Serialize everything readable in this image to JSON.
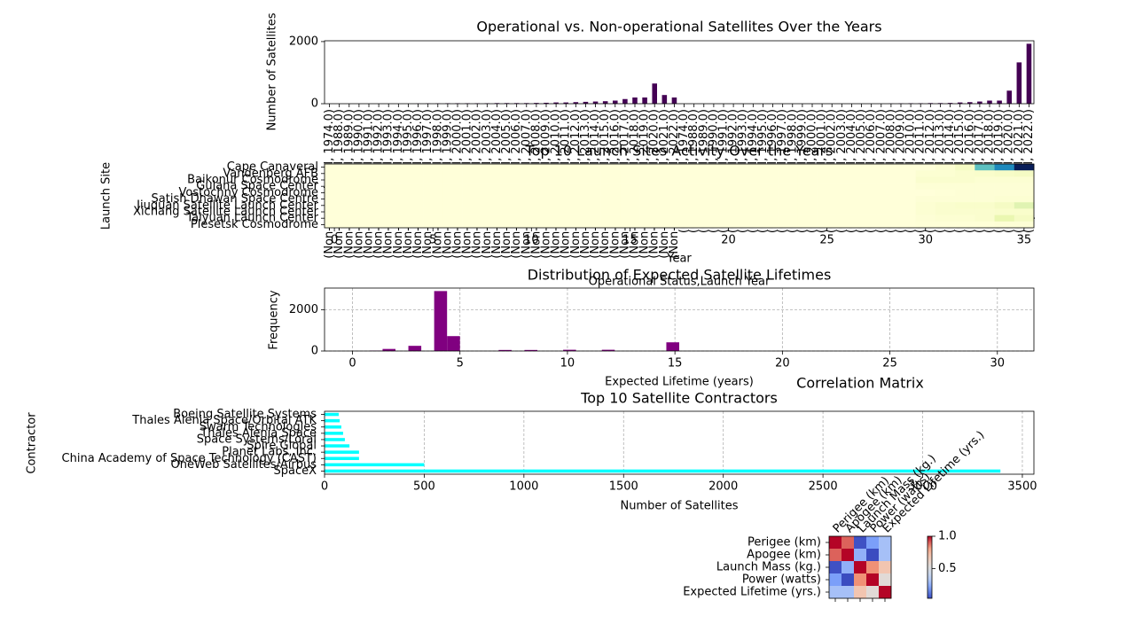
{
  "chart_data": [
    {
      "type": "bar",
      "title": "Operational vs. Non-operational Satellites Over the Years",
      "xlabel": "Operational Status,Launch Year",
      "ylabel": "Number of Satellites",
      "color": "#440154",
      "categories": [
        "(Non-operational, 1974.0)",
        "(Non-operational, 1988.0)",
        "(Non-operational, 1989.0)",
        "(Non-operational, 1990.0)",
        "(Non-operational, 1991.0)",
        "(Non-operational, 1992.0)",
        "(Non-operational, 1993.0)",
        "(Non-operational, 1994.0)",
        "(Non-operational, 1995.0)",
        "(Non-operational, 1996.0)",
        "(Non-operational, 1997.0)",
        "(Non-operational, 1998.0)",
        "(Non-operational, 1999.0)",
        "(Non-operational, 2000.0)",
        "(Non-operational, 2001.0)",
        "(Non-operational, 2002.0)",
        "(Non-operational, 2003.0)",
        "(Non-operational, 2004.0)",
        "(Non-operational, 2005.0)",
        "(Non-operational, 2006.0)",
        "(Non-operational, 2007.0)",
        "(Non-operational, 2008.0)",
        "(Non-operational, 2009.0)",
        "(Non-operational, 2010.0)",
        "(Non-operational, 2011.0)",
        "(Non-operational, 2012.0)",
        "(Non-operational, 2013.0)",
        "(Non-operational, 2014.0)",
        "(Non-operational, 2015.0)",
        "(Non-operational, 2016.0)",
        "(Non-operational, 2017.0)",
        "(Non-operational, 2018.0)",
        "(Non-operational, 2019.0)",
        "(Non-operational, 2020.0)",
        "(Non-operational, 2021.0)",
        "(Non-operational, 2022.0)",
        "(Operational, 1974.0)",
        "(Operational, 1988.0)",
        "(Operational, 1989.0)",
        "(Operational, 1990.0)",
        "(Operational, 1991.0)",
        "(Operational, 1992.0)",
        "(Operational, 1993.0)",
        "(Operational, 1994.0)",
        "(Operational, 1995.0)",
        "(Operational, 1996.0)",
        "(Operational, 1997.0)",
        "(Operational, 1998.0)",
        "(Operational, 1999.0)",
        "(Operational, 2000.0)",
        "(Operational, 2001.0)",
        "(Operational, 2002.0)",
        "(Operational, 2003.0)",
        "(Operational, 2004.0)",
        "(Operational, 2005.0)",
        "(Operational, 2006.0)",
        "(Operational, 2007.0)",
        "(Operational, 2008.0)",
        "(Operational, 2009.0)",
        "(Operational, 2010.0)",
        "(Operational, 2011.0)",
        "(Operational, 2012.0)",
        "(Operational, 2013.0)",
        "(Operational, 2014.0)",
        "(Operational, 2015.0)",
        "(Operational, 2016.0)",
        "(Operational, 2017.0)",
        "(Operational, 2018.0)",
        "(Operational, 2019.0)",
        "(Operational, 2020.0)",
        "(Operational, 2021.0)",
        "(Operational, 2022.0)"
      ],
      "values": [
        0,
        0,
        0,
        0,
        0,
        0,
        0,
        0,
        0,
        5,
        10,
        10,
        15,
        15,
        15,
        15,
        15,
        20,
        20,
        20,
        20,
        25,
        30,
        40,
        40,
        50,
        60,
        70,
        80,
        100,
        150,
        200,
        200,
        650,
        280,
        200,
        0,
        0,
        0,
        0,
        0,
        0,
        0,
        0,
        0,
        0,
        0,
        0,
        0,
        0,
        0,
        0,
        0,
        0,
        0,
        0,
        0,
        5,
        10,
        15,
        15,
        20,
        20,
        25,
        40,
        50,
        70,
        100,
        100,
        420,
        1330,
        1930
      ],
      "ylim": [
        0,
        2026
      ],
      "yticks": [
        0,
        2000
      ]
    },
    {
      "type": "heatmap",
      "title": "Top 10 Launch Sites Activity Over the Years",
      "xlabel": "Year",
      "ylabel": "Launch Site",
      "cmap": "YlGnBu",
      "rows": [
        "Cape Canaveral",
        "Vandenberg AFB",
        "Baikonur Cosmodrome",
        "Guiana Space Center",
        "Vostochny Cosmodrome",
        "Satish Dhawan Space Centre",
        "Jiuquan Satellite Launch Center",
        "Xichang Satellite Launch Center",
        "Taiyuan Launch Center",
        "Plesetsk Cosmodrome"
      ],
      "xticks": [
        0,
        5,
        10,
        15,
        20,
        25,
        30,
        35
      ],
      "values": [
        [
          0,
          0,
          0,
          0,
          0,
          0,
          0,
          0,
          0,
          0,
          0,
          0,
          0,
          0,
          0,
          0,
          0,
          0,
          0,
          0,
          0,
          0,
          0,
          0,
          0,
          0,
          0,
          0,
          0,
          0,
          0,
          20,
          60,
          400,
          580,
          900
        ],
        [
          0,
          0,
          0,
          0,
          0,
          0,
          0,
          0,
          0,
          0,
          0,
          0,
          0,
          0,
          0,
          0,
          0,
          0,
          0,
          0,
          0,
          0,
          0,
          0,
          0,
          0,
          0,
          0,
          0,
          0,
          20,
          20,
          30,
          40,
          50,
          60
        ],
        [
          0,
          0,
          0,
          0,
          0,
          0,
          0,
          0,
          0,
          0,
          0,
          0,
          0,
          0,
          0,
          0,
          0,
          0,
          0,
          0,
          0,
          0,
          0,
          0,
          0,
          0,
          0,
          0,
          0,
          0,
          30,
          30,
          30,
          20,
          20,
          20
        ],
        [
          0,
          0,
          0,
          0,
          0,
          0,
          0,
          0,
          0,
          0,
          0,
          0,
          0,
          0,
          0,
          0,
          0,
          0,
          0,
          0,
          0,
          0,
          0,
          0,
          0,
          0,
          0,
          0,
          0,
          0,
          10,
          10,
          10,
          10,
          10,
          10
        ],
        [
          0,
          0,
          0,
          0,
          0,
          0,
          0,
          0,
          0,
          0,
          0,
          0,
          0,
          0,
          0,
          0,
          0,
          0,
          0,
          0,
          0,
          0,
          0,
          0,
          0,
          0,
          0,
          0,
          0,
          0,
          0,
          5,
          10,
          10,
          10,
          10
        ],
        [
          0,
          0,
          0,
          0,
          0,
          0,
          0,
          0,
          0,
          0,
          0,
          0,
          0,
          0,
          0,
          0,
          0,
          0,
          0,
          0,
          0,
          0,
          0,
          0,
          0,
          0,
          0,
          0,
          0,
          0,
          10,
          10,
          10,
          10,
          20,
          20
        ],
        [
          0,
          0,
          0,
          0,
          0,
          0,
          0,
          0,
          0,
          0,
          0,
          0,
          0,
          0,
          0,
          0,
          0,
          0,
          0,
          0,
          0,
          0,
          0,
          0,
          0,
          0,
          0,
          0,
          0,
          0,
          20,
          30,
          40,
          40,
          60,
          150
        ],
        [
          0,
          0,
          0,
          0,
          0,
          0,
          0,
          0,
          0,
          0,
          0,
          0,
          0,
          0,
          0,
          0,
          0,
          0,
          0,
          0,
          0,
          0,
          0,
          0,
          0,
          0,
          0,
          0,
          0,
          0,
          20,
          30,
          30,
          30,
          40,
          40
        ],
        [
          0,
          0,
          0,
          0,
          0,
          0,
          0,
          0,
          0,
          0,
          0,
          0,
          0,
          0,
          0,
          0,
          0,
          0,
          0,
          0,
          0,
          0,
          0,
          0,
          0,
          0,
          0,
          0,
          0,
          0,
          10,
          20,
          20,
          30,
          120,
          60
        ],
        [
          0,
          0,
          0,
          0,
          0,
          0,
          0,
          0,
          0,
          0,
          0,
          0,
          0,
          0,
          0,
          0,
          0,
          0,
          0,
          0,
          0,
          0,
          0,
          0,
          0,
          0,
          0,
          0,
          0,
          0,
          5,
          5,
          5,
          5,
          10,
          10
        ]
      ]
    },
    {
      "type": "histogram",
      "title": "Distribution of Expected Satellite Lifetimes",
      "xlabel": "Expected Lifetime (years)",
      "ylabel": "Frequency",
      "color": "#800080",
      "grid": true,
      "bins": [
        0.2,
        0.8,
        1.4,
        2.0,
        2.6,
        3.2,
        3.8,
        4.4,
        5.0,
        5.6,
        6.2,
        6.8,
        7.4,
        8.0,
        8.6,
        9.2,
        9.8,
        10.4,
        11.0,
        11.6,
        12.2,
        12.8,
        13.4,
        14.0,
        14.6,
        15.2,
        15.8,
        16.4,
        17.0,
        17.6,
        18.2,
        18.8,
        19.4,
        20.0,
        20.6,
        21.2,
        21.8,
        22.4,
        23.0,
        23.6,
        24.2,
        24.8,
        25.4,
        26.0,
        26.6,
        27.2,
        27.8,
        28.4,
        29.0,
        29.6,
        30.2
      ],
      "counts": [
        0,
        20,
        100,
        0,
        250,
        0,
        2900,
        720,
        0,
        0,
        0,
        50,
        0,
        50,
        0,
        0,
        60,
        0,
        0,
        60,
        0,
        0,
        0,
        0,
        420,
        0,
        0,
        0,
        0,
        0,
        0,
        0,
        0,
        0,
        0,
        0,
        0,
        0,
        0,
        0,
        0,
        0,
        0,
        0,
        0,
        0,
        0,
        0,
        0,
        0
      ],
      "xlim": [
        -1.3,
        31.7
      ],
      "xticks": [
        0,
        5,
        10,
        15,
        20,
        25,
        30
      ],
      "ylim": [
        0,
        3045
      ],
      "yticks": [
        0,
        2000
      ]
    },
    {
      "type": "barh",
      "title": "Top 10 Satellite Contractors",
      "xlabel": "Number of Satellites",
      "ylabel": "Contractor",
      "color": "#00ffff",
      "grid": true,
      "categories": [
        "SpaceX",
        "OneWeb Satellites/Airbus",
        "China Academy of Space Technology (CAST)",
        "Planet Labs, Inc.",
        "Spire Global",
        "Space Systems/Loral",
        "Thales Alenia Space",
        "Swarm Technologies",
        "Thales Alenia Space/Orbital ATK",
        "Boeing Satellite Systems"
      ],
      "values": [
        3390,
        500,
        173,
        173,
        125,
        102,
        93,
        84,
        76,
        71
      ],
      "xlim": [
        0,
        3558
      ],
      "xticks": [
        0,
        500,
        1000,
        1500,
        2000,
        2500,
        3000,
        3500
      ]
    },
    {
      "type": "correlation",
      "title": "Correlation Matrix",
      "cmap": "coolwarm",
      "labels": [
        "Perigee (km)",
        "Apogee (km)",
        "Launch Mass (kg.)",
        "Power (watts)",
        "Expected Lifetime (yrs.)"
      ],
      "values": [
        [
          1,
          0.9,
          0.05,
          0.2,
          0.3
        ],
        [
          0.9,
          1,
          0.25,
          0.04,
          0.3
        ],
        [
          0.05,
          0.25,
          1,
          0.85,
          0.7
        ],
        [
          0.2,
          0.04,
          0.85,
          1,
          0.55
        ],
        [
          0.3,
          0.3,
          0.7,
          0.55,
          1
        ]
      ],
      "clim": [
        0.04,
        1
      ],
      "colorbar_ticks": [
        0.5,
        {
          "value": 1,
          "label": "1.0"
        }
      ]
    }
  ]
}
